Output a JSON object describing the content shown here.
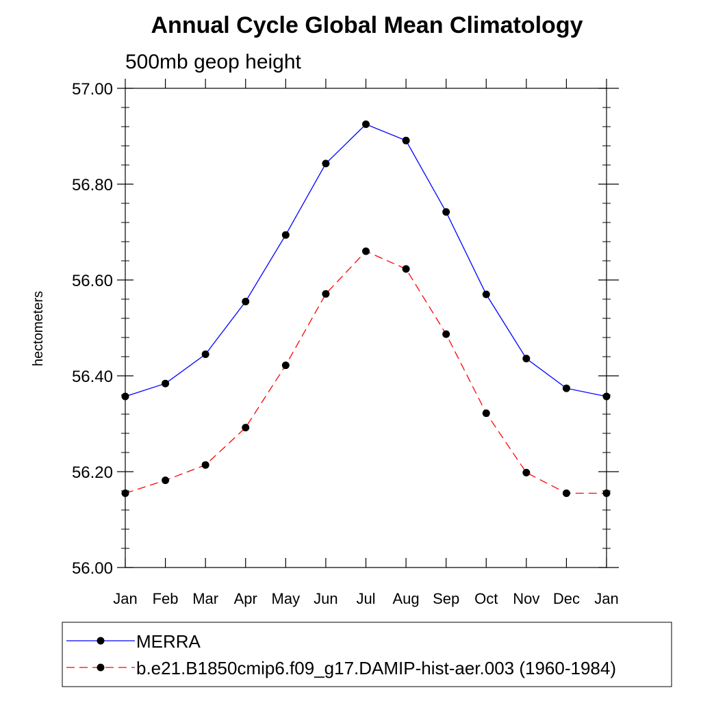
{
  "chart_data": {
    "type": "line",
    "title": "Annual Cycle Global Mean Climatology",
    "subtitle": "500mb geop height",
    "ylabel": "hectometers",
    "xlabel": "",
    "ylim": [
      56.0,
      57.0
    ],
    "yticks": [
      56.0,
      56.2,
      56.4,
      56.6,
      56.8,
      57.0
    ],
    "ytick_labels": [
      "56.00",
      "56.20",
      "56.40",
      "56.60",
      "56.80",
      "57.00"
    ],
    "categories": [
      "Jan",
      "Feb",
      "Mar",
      "Apr",
      "May",
      "Jun",
      "Jul",
      "Aug",
      "Sep",
      "Oct",
      "Nov",
      "Dec",
      "Jan"
    ],
    "grid": false,
    "legend_position": "bottom",
    "series": [
      {
        "name": "MERRA",
        "color": "#0000ff",
        "dash": "solid",
        "marker": "circle",
        "values": [
          56.357,
          56.384,
          56.445,
          56.555,
          56.694,
          56.843,
          56.925,
          56.891,
          56.742,
          56.57,
          56.436,
          56.374,
          56.357
        ]
      },
      {
        "name": "b.e21.B1850cmip6.f09_g17.DAMIP-hist-aer.003 (1960-1984)",
        "color": "#ff0000",
        "dash": "dashed",
        "marker": "circle",
        "values": [
          56.155,
          56.182,
          56.214,
          56.292,
          56.422,
          56.571,
          56.66,
          56.623,
          56.487,
          56.322,
          56.198,
          56.155,
          56.155
        ]
      }
    ]
  }
}
